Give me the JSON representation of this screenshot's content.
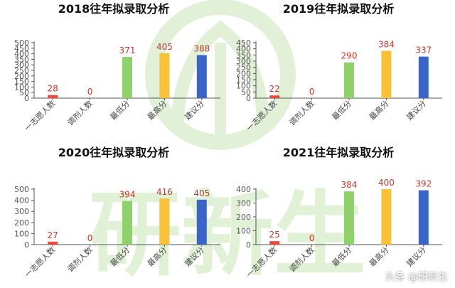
{
  "chart_data": [
    {
      "type": "bar",
      "title": "2018往年拟录取分析",
      "categories": [
        "一志愿人数",
        "调剂人数",
        "最低分",
        "最高分",
        "建议分"
      ],
      "values": [
        28,
        0,
        371,
        405,
        388
      ],
      "yticks": [
        0,
        50,
        100,
        150,
        200,
        250,
        300,
        350,
        400,
        450,
        500
      ],
      "ylim": [
        0,
        500
      ],
      "colors": [
        "#e84b3c",
        "#e84b3c",
        "#8fd16a",
        "#f7c23a",
        "#3a64c8"
      ],
      "label_color": "#c0392b"
    },
    {
      "type": "bar",
      "title": "2019往年拟录取分析",
      "categories": [
        "一志愿人数",
        "调剂人数",
        "最低分",
        "最高分",
        "建议分"
      ],
      "values": [
        22,
        0,
        290,
        384,
        337
      ],
      "yticks": [
        0,
        50,
        100,
        150,
        200,
        250,
        300,
        350,
        400,
        450
      ],
      "ylim": [
        0,
        450
      ],
      "colors": [
        "#e84b3c",
        "#e84b3c",
        "#8fd16a",
        "#f7c23a",
        "#3a64c8"
      ],
      "label_color": "#c0392b"
    },
    {
      "type": "bar",
      "title": "2020往年拟录取分析",
      "categories": [
        "一志愿人数",
        "调剂人数",
        "最低分",
        "最高分",
        "建议分"
      ],
      "values": [
        27,
        0,
        394,
        416,
        405
      ],
      "yticks": [
        0,
        100,
        200,
        300,
        400,
        500
      ],
      "ylim": [
        0,
        500
      ],
      "colors": [
        "#e84b3c",
        "#e84b3c",
        "#8fd16a",
        "#f7c23a",
        "#3a64c8"
      ],
      "label_color": "#c0392b"
    },
    {
      "type": "bar",
      "title": "2021往年拟录取分析",
      "categories": [
        "一志愿人数",
        "调剂人数",
        "最低分",
        "最高分",
        "建议分"
      ],
      "values": [
        25,
        0,
        384,
        400,
        392
      ],
      "yticks": [
        0,
        100,
        200,
        300,
        400
      ],
      "ylim": [
        0,
        400
      ],
      "colors": [
        "#e84b3c",
        "#e84b3c",
        "#8fd16a",
        "#f7c23a",
        "#3a64c8"
      ],
      "label_color": "#c0392b"
    }
  ],
  "watermark": {
    "text": "研新生",
    "color": "#d6ebc8"
  },
  "footer": {
    "text": "头条 @研新生"
  }
}
